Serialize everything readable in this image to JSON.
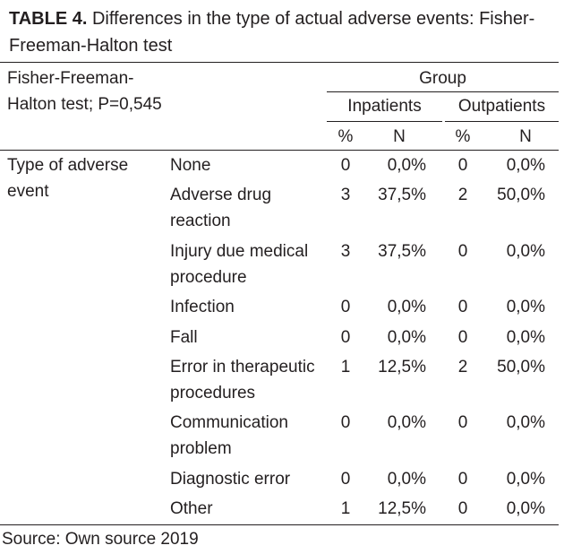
{
  "caption": {
    "label": "TABLE 4.",
    "text": " Differences in the type of actual adverse events: Fisher-Freeman-Halton test"
  },
  "header": {
    "stub_line1": "Fisher-Freeman-",
    "stub_line2": "Halton test; P=0,545",
    "group": "Group",
    "inpatients": "Inpatients",
    "outpatients": "Outpatients",
    "col_pct": "%",
    "col_n": "N"
  },
  "row_group": {
    "line1": "Type of adverse",
    "line2": "event"
  },
  "rows": [
    {
      "label": [
        "None"
      ],
      "in_pct": "0",
      "in_n": "0,0%",
      "out_pct": "0",
      "out_n": "0,0%"
    },
    {
      "label": [
        "Adverse drug",
        "reaction"
      ],
      "in_pct": "3",
      "in_n": "37,5%",
      "out_pct": "2",
      "out_n": "50,0%"
    },
    {
      "label": [
        "Injury due medical",
        "procedure"
      ],
      "in_pct": "3",
      "in_n": "37,5%",
      "out_pct": "0",
      "out_n": "0,0%"
    },
    {
      "label": [
        "Infection"
      ],
      "in_pct": "0",
      "in_n": "0,0%",
      "out_pct": "0",
      "out_n": "0,0%"
    },
    {
      "label": [
        "Fall"
      ],
      "in_pct": "0",
      "in_n": "0,0%",
      "out_pct": "0",
      "out_n": "0,0%"
    },
    {
      "label": [
        "Error in therapeutic",
        "procedures"
      ],
      "in_pct": "1",
      "in_n": "12,5%",
      "out_pct": "2",
      "out_n": "50,0%"
    },
    {
      "label": [
        "Communication",
        "problem"
      ],
      "in_pct": "0",
      "in_n": "0,0%",
      "out_pct": "0",
      "out_n": "0,0%"
    },
    {
      "label": [
        "Diagnostic error"
      ],
      "in_pct": "0",
      "in_n": "0,0%",
      "out_pct": "0",
      "out_n": "0,0%"
    },
    {
      "label": [
        "Other"
      ],
      "in_pct": "1",
      "in_n": "12,5%",
      "out_pct": "0",
      "out_n": "0,0%"
    }
  ],
  "source": "Source: Own source 2019"
}
